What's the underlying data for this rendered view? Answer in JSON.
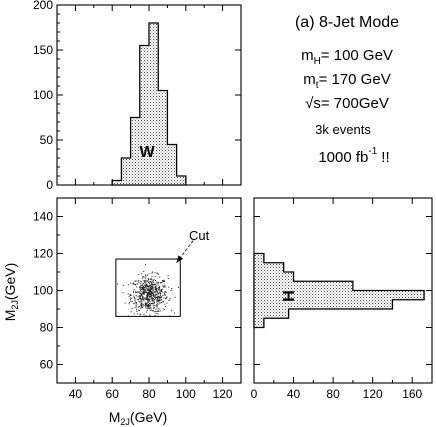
{
  "chart_data": [
    {
      "type": "bar",
      "panel": "top-left",
      "hist_label": "W",
      "xlim": [
        30,
        130
      ],
      "ylim": [
        0,
        200
      ],
      "yticks": [
        0,
        50,
        100,
        150,
        200
      ],
      "bin_edges": [
        60,
        65,
        70,
        75,
        80,
        85,
        90,
        95,
        100
      ],
      "values": [
        5,
        30,
        75,
        155,
        180,
        105,
        45,
        10
      ]
    },
    {
      "type": "scatter",
      "panel": "bottom-left",
      "xlabel": "M",
      "xlabel_sub": "2J",
      "xlabel_unit": "(GeV)",
      "ylabel": "M",
      "ylabel_sub": "2J",
      "ylabel_unit": "(GeV)",
      "xlim": [
        30,
        130
      ],
      "ylim": [
        50,
        150
      ],
      "xticks": [
        40,
        60,
        80,
        100,
        120
      ],
      "yticks": [
        60,
        80,
        100,
        120,
        140
      ],
      "cut_label": "Cut",
      "cut_box": {
        "x": [
          62,
          97
        ],
        "y": [
          86,
          117
        ]
      },
      "cut_arrow": {
        "from": [
          104,
          127
        ],
        "to": [
          95,
          115
        ]
      },
      "cloud": {
        "center": [
          80,
          98
        ],
        "spread": [
          5,
          5
        ],
        "n_points": 650
      }
    },
    {
      "type": "bar",
      "orientation": "horizontal",
      "panel": "bottom-right",
      "hist_label": "H",
      "xlim": [
        0,
        180
      ],
      "ylim": [
        50,
        150
      ],
      "xticks": [
        0,
        40,
        80,
        120,
        160
      ],
      "bin_edges": [
        80,
        85,
        90,
        95,
        100,
        105,
        110,
        115,
        120
      ],
      "values": [
        10,
        35,
        140,
        172,
        100,
        40,
        30,
        10
      ]
    }
  ],
  "info": {
    "title": "(a) 8-Jet Mode",
    "mh_label": "m",
    "mh_sub": "H",
    "mh_value": "= 100 GeV",
    "mt_label": "m",
    "mt_sub": "t",
    "mt_value": "= 170 GeV",
    "sqrt_symbol": "√",
    "sqrt_label": "s",
    "sqrt_value": "= 700GeV",
    "events": "3k events",
    "lumi": "1000 fb",
    "lumi_exp": "-1",
    "lumi_suffix": "!!"
  }
}
